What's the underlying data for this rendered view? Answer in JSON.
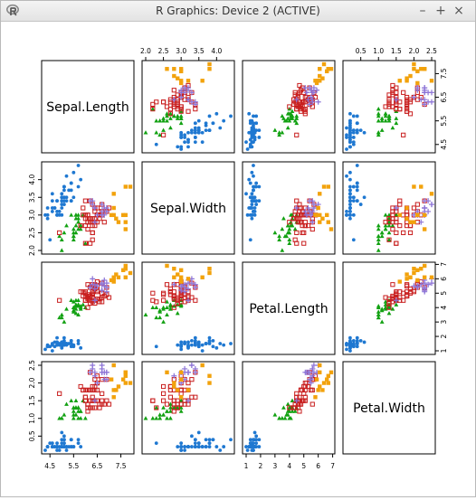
{
  "window": {
    "title": "R Graphics: Device 2 (ACTIVE)",
    "app_icon": "r-logo-icon",
    "buttons": {
      "minimize": "–",
      "maximize": "+",
      "close": "×"
    }
  },
  "chart_data": {
    "type": "scatter-matrix",
    "title": "",
    "variables": [
      "Sepal.Length",
      "Sepal.Width",
      "Petal.Length",
      "Petal.Width"
    ],
    "ranges": [
      [
        4.3,
        7.9
      ],
      [
        2.0,
        4.4
      ],
      [
        1.0,
        6.9
      ],
      [
        0.1,
        2.5
      ]
    ],
    "ticks": [
      [
        "4.5",
        "5.5",
        "6.5",
        "7.5"
      ],
      [
        "2.0",
        "2.5",
        "3.0",
        "3.5",
        "4.0"
      ],
      [
        "1",
        "2",
        "3",
        "4",
        "5",
        "6",
        "7"
      ],
      [
        "0.5",
        "1.0",
        "1.5",
        "2.0",
        "2.5"
      ]
    ],
    "groups": [
      {
        "marker": "circle",
        "color": "#1f78d1",
        "points": [
          [
            5.1,
            3.5,
            1.4,
            0.2
          ],
          [
            4.9,
            3.0,
            1.4,
            0.2
          ],
          [
            4.7,
            3.2,
            1.3,
            0.2
          ],
          [
            4.6,
            3.1,
            1.5,
            0.2
          ],
          [
            5.0,
            3.6,
            1.4,
            0.2
          ],
          [
            5.4,
            3.9,
            1.7,
            0.4
          ],
          [
            4.6,
            3.4,
            1.4,
            0.3
          ],
          [
            5.0,
            3.4,
            1.5,
            0.2
          ],
          [
            4.4,
            2.9,
            1.4,
            0.2
          ],
          [
            4.9,
            3.1,
            1.5,
            0.1
          ],
          [
            5.4,
            3.7,
            1.5,
            0.2
          ],
          [
            4.8,
            3.4,
            1.6,
            0.2
          ],
          [
            4.8,
            3.0,
            1.4,
            0.1
          ],
          [
            4.3,
            3.0,
            1.1,
            0.1
          ],
          [
            5.8,
            4.0,
            1.2,
            0.2
          ],
          [
            5.7,
            4.4,
            1.5,
            0.4
          ],
          [
            5.4,
            3.9,
            1.3,
            0.4
          ],
          [
            5.1,
            3.5,
            1.4,
            0.3
          ],
          [
            5.7,
            3.8,
            1.7,
            0.3
          ],
          [
            5.1,
            3.8,
            1.5,
            0.3
          ],
          [
            5.4,
            3.4,
            1.7,
            0.2
          ],
          [
            5.1,
            3.7,
            1.5,
            0.4
          ],
          [
            4.6,
            3.6,
            1.0,
            0.2
          ],
          [
            5.1,
            3.3,
            1.7,
            0.5
          ],
          [
            4.8,
            3.4,
            1.9,
            0.2
          ],
          [
            5.0,
            3.0,
            1.6,
            0.2
          ],
          [
            5.0,
            3.4,
            1.6,
            0.4
          ],
          [
            5.2,
            3.5,
            1.5,
            0.2
          ],
          [
            5.2,
            3.4,
            1.4,
            0.2
          ],
          [
            4.7,
            3.2,
            1.6,
            0.2
          ],
          [
            4.8,
            3.1,
            1.6,
            0.2
          ],
          [
            5.4,
            3.4,
            1.5,
            0.4
          ],
          [
            5.2,
            4.1,
            1.5,
            0.1
          ],
          [
            5.5,
            4.2,
            1.4,
            0.2
          ],
          [
            5.0,
            3.2,
            1.2,
            0.2
          ],
          [
            5.5,
            3.5,
            1.3,
            0.2
          ],
          [
            4.4,
            3.0,
            1.3,
            0.2
          ],
          [
            5.1,
            3.4,
            1.5,
            0.2
          ],
          [
            5.0,
            3.5,
            1.3,
            0.3
          ],
          [
            4.5,
            2.3,
            1.3,
            0.3
          ],
          [
            4.4,
            3.2,
            1.3,
            0.2
          ],
          [
            5.0,
            3.5,
            1.6,
            0.6
          ],
          [
            5.1,
            3.8,
            1.9,
            0.4
          ],
          [
            4.8,
            3.0,
            1.4,
            0.3
          ],
          [
            5.1,
            3.8,
            1.6,
            0.2
          ],
          [
            4.6,
            3.2,
            1.4,
            0.2
          ],
          [
            5.3,
            3.7,
            1.5,
            0.2
          ],
          [
            5.0,
            3.3,
            1.4,
            0.2
          ]
        ]
      },
      {
        "marker": "triangle",
        "color": "#12a112",
        "points": [
          [
            5.5,
            2.3,
            4.0,
            1.3
          ],
          [
            5.7,
            2.8,
            4.5,
            1.3
          ],
          [
            4.9,
            2.4,
            3.3,
            1.0
          ],
          [
            5.2,
            2.7,
            3.9,
            1.4
          ],
          [
            5.0,
            2.0,
            3.5,
            1.0
          ],
          [
            5.9,
            3.0,
            4.2,
            1.5
          ],
          [
            6.0,
            2.2,
            4.0,
            1.0
          ],
          [
            5.6,
            2.9,
            3.6,
            1.3
          ],
          [
            5.6,
            3.0,
            4.5,
            1.5
          ],
          [
            5.8,
            2.7,
            4.1,
            1.0
          ],
          [
            5.6,
            2.5,
            3.9,
            1.1
          ],
          [
            5.7,
            2.6,
            3.5,
            1.0
          ],
          [
            5.5,
            2.4,
            3.8,
            1.1
          ],
          [
            5.5,
            2.4,
            3.7,
            1.0
          ],
          [
            5.8,
            2.7,
            3.9,
            1.2
          ],
          [
            5.4,
            3.0,
            4.5,
            1.5
          ],
          [
            5.6,
            3.0,
            4.1,
            1.3
          ],
          [
            5.5,
            2.5,
            4.0,
            1.3
          ],
          [
            5.5,
            2.6,
            4.4,
            1.2
          ],
          [
            5.8,
            2.6,
            4.0,
            1.2
          ],
          [
            5.0,
            2.3,
            3.3,
            1.0
          ],
          [
            5.6,
            2.7,
            4.2,
            1.3
          ],
          [
            5.7,
            3.0,
            4.2,
            1.2
          ],
          [
            5.7,
            2.9,
            4.2,
            1.3
          ],
          [
            5.1,
            2.5,
            3.0,
            1.1
          ],
          [
            5.7,
            2.8,
            4.1,
            1.3
          ]
        ]
      },
      {
        "marker": "square",
        "color": "#c81e1e",
        "points": [
          [
            7.0,
            3.2,
            4.7,
            1.4
          ],
          [
            6.4,
            3.2,
            4.5,
            1.5
          ],
          [
            6.9,
            3.1,
            4.9,
            1.5
          ],
          [
            6.5,
            2.8,
            4.6,
            1.5
          ],
          [
            6.3,
            3.3,
            4.7,
            1.6
          ],
          [
            6.6,
            2.9,
            4.6,
            1.3
          ],
          [
            6.1,
            2.9,
            4.7,
            1.4
          ],
          [
            6.7,
            3.1,
            4.4,
            1.4
          ],
          [
            6.2,
            2.2,
            4.5,
            1.5
          ],
          [
            5.9,
            3.2,
            4.8,
            1.8
          ],
          [
            6.1,
            2.8,
            4.0,
            1.3
          ],
          [
            6.3,
            2.5,
            4.9,
            1.5
          ],
          [
            6.1,
            2.8,
            4.7,
            1.2
          ],
          [
            6.4,
            2.9,
            4.3,
            1.3
          ],
          [
            6.6,
            3.0,
            4.4,
            1.4
          ],
          [
            6.8,
            2.8,
            4.8,
            1.4
          ],
          [
            6.7,
            3.0,
            5.0,
            1.7
          ],
          [
            6.0,
            2.9,
            4.5,
            1.5
          ],
          [
            6.0,
            2.7,
            5.1,
            1.6
          ],
          [
            6.0,
            3.4,
            4.5,
            1.6
          ],
          [
            6.7,
            3.1,
            4.7,
            1.5
          ],
          [
            6.3,
            2.3,
            4.4,
            1.3
          ],
          [
            6.1,
            3.0,
            4.6,
            1.4
          ],
          [
            6.2,
            2.9,
            4.3,
            1.3
          ],
          [
            6.3,
            2.9,
            5.6,
            1.8
          ],
          [
            6.5,
            3.0,
            5.8,
            2.2
          ],
          [
            4.9,
            2.5,
            4.5,
            1.7
          ],
          [
            6.3,
            2.7,
            4.9,
            1.8
          ],
          [
            6.2,
            2.8,
            4.8,
            1.8
          ],
          [
            6.1,
            3.0,
            4.9,
            1.8
          ],
          [
            6.4,
            2.8,
            5.6,
            2.1
          ],
          [
            6.3,
            2.8,
            5.1,
            1.5
          ],
          [
            6.1,
            2.6,
            5.6,
            1.4
          ],
          [
            6.4,
            3.1,
            5.5,
            1.8
          ],
          [
            6.0,
            3.0,
            4.8,
            1.8
          ],
          [
            6.9,
            3.1,
            5.4,
            2.1
          ],
          [
            5.8,
            2.7,
            5.1,
            1.9
          ],
          [
            6.5,
            3.0,
            5.2,
            2.0
          ],
          [
            6.2,
            3.4,
            5.4,
            2.3
          ],
          [
            5.9,
            3.0,
            5.1,
            1.8
          ],
          [
            6.3,
            2.5,
            5.0,
            1.9
          ],
          [
            6.7,
            3.3,
            5.7,
            2.1
          ],
          [
            6.0,
            2.2,
            5.0,
            1.5
          ],
          [
            6.4,
            2.7,
            5.3,
            1.9
          ],
          [
            6.5,
            3.0,
            5.5,
            1.8
          ],
          [
            6.5,
            3.2,
            5.1,
            2.0
          ]
        ]
      },
      {
        "marker": "plus",
        "color": "#8b72d6",
        "points": [
          [
            6.7,
            3.0,
            5.2,
            2.3
          ],
          [
            6.8,
            3.2,
            5.9,
            2.3
          ],
          [
            6.7,
            3.3,
            5.7,
            2.5
          ],
          [
            6.9,
            3.1,
            5.1,
            2.3
          ],
          [
            6.4,
            3.2,
            5.3,
            2.3
          ],
          [
            6.7,
            3.1,
            5.6,
            2.4
          ],
          [
            6.3,
            3.4,
            5.6,
            2.4
          ],
          [
            6.8,
            3.0,
            5.5,
            2.1
          ],
          [
            6.9,
            3.2,
            5.7,
            2.3
          ],
          [
            6.4,
            2.8,
            5.6,
            2.2
          ],
          [
            6.5,
            3.0,
            5.5,
            2.0
          ],
          [
            6.3,
            3.3,
            6.0,
            2.5
          ],
          [
            6.2,
            3.4,
            5.4,
            2.3
          ],
          [
            6.7,
            3.0,
            5.2,
            2.3
          ],
          [
            6.9,
            3.1,
            5.4,
            2.1
          ],
          [
            6.4,
            3.2,
            4.5,
            1.5
          ]
        ]
      },
      {
        "marker": "square-filled",
        "color": "#f2a20c",
        "points": [
          [
            7.6,
            3.0,
            6.6,
            2.1
          ],
          [
            7.3,
            2.9,
            6.3,
            1.8
          ],
          [
            7.2,
            3.6,
            6.1,
            2.5
          ],
          [
            7.7,
            3.8,
            6.7,
            2.2
          ],
          [
            7.7,
            2.6,
            6.9,
            2.3
          ],
          [
            7.7,
            2.8,
            6.7,
            2.0
          ],
          [
            7.2,
            3.2,
            6.0,
            1.8
          ],
          [
            7.2,
            3.0,
            5.8,
            1.6
          ],
          [
            7.4,
            2.8,
            6.1,
            1.9
          ],
          [
            7.9,
            3.8,
            6.4,
            2.0
          ],
          [
            7.7,
            3.0,
            6.1,
            2.3
          ],
          [
            7.1,
            3.0,
            5.9,
            2.1
          ]
        ]
      }
    ]
  }
}
